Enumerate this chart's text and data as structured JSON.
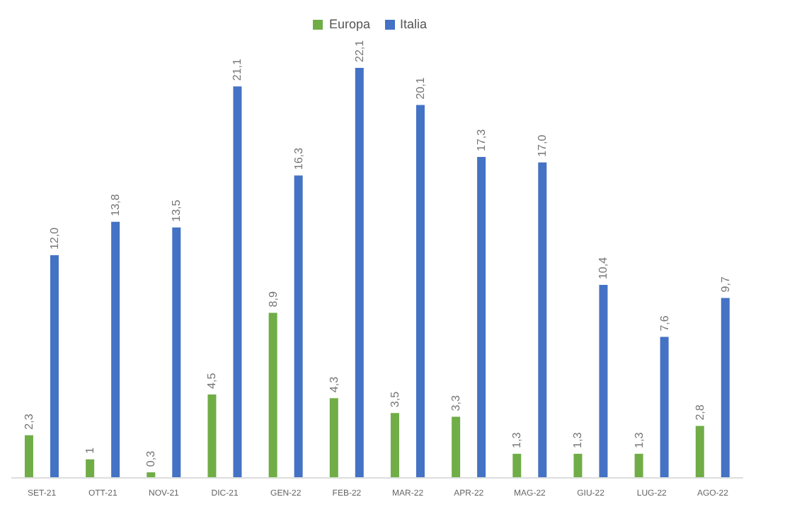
{
  "chart_data": {
    "type": "bar",
    "categories": [
      "SET-21",
      "OTT-21",
      "NOV-21",
      "DIC-21",
      "GEN-22",
      "FEB-22",
      "MAR-22",
      "APR-22",
      "MAG-22",
      "GIU-22",
      "LUG-22",
      "AGO-22"
    ],
    "series": [
      {
        "name": "Europa",
        "color": "#70ad47",
        "values": [
          2.3,
          1,
          0.3,
          4.5,
          8.9,
          4.3,
          3.5,
          3.3,
          1.3,
          1.3,
          1.3,
          2.8
        ],
        "value_labels": [
          "2,3",
          "1",
          "0,3",
          "4,5",
          "8,9",
          "4,3",
          "3,5",
          "3,3",
          "1,3",
          "1,3",
          "1,3",
          "2,8"
        ]
      },
      {
        "name": "Italia",
        "color": "#4472c4",
        "values": [
          12.0,
          13.8,
          13.5,
          21.1,
          16.3,
          22.1,
          20.1,
          17.3,
          17.0,
          10.4,
          7.6,
          9.7
        ],
        "value_labels": [
          "12,0",
          "13,8",
          "13,5",
          "21,1",
          "16,3",
          "22,1",
          "20,1",
          "17,3",
          "17,0",
          "10,4",
          "7,6",
          "9,7"
        ]
      }
    ],
    "legend": "top",
    "grid": false
  }
}
